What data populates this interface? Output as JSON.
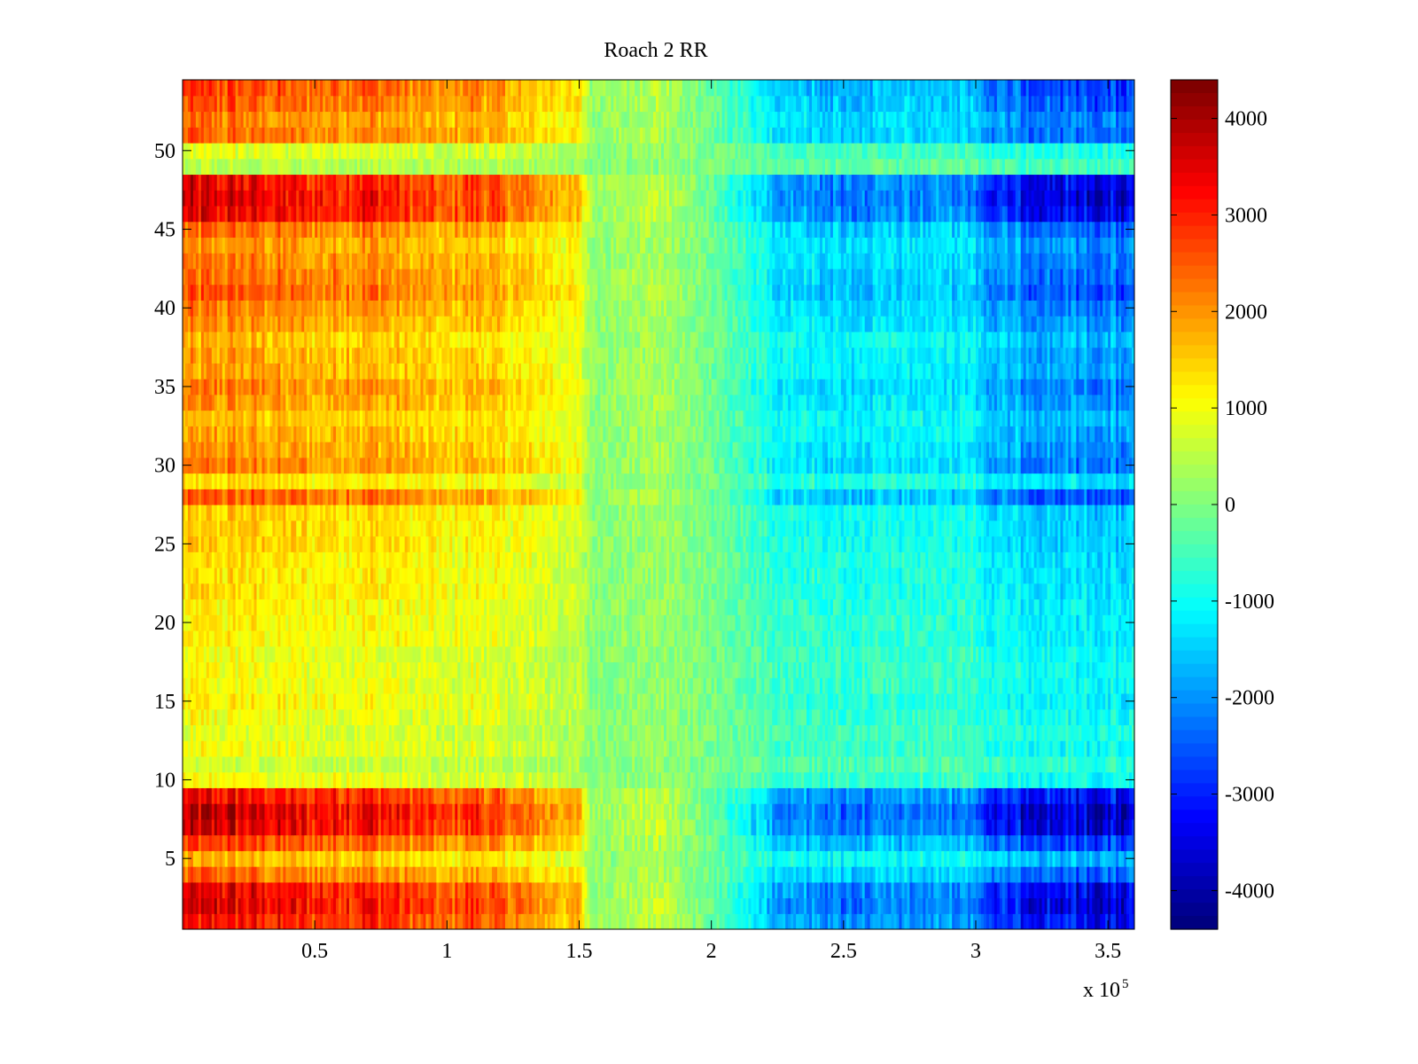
{
  "chart_data": {
    "type": "heatmap",
    "title": "Roach 2 RR",
    "xlabel": "",
    "ylabel": "",
    "x_exponent_label": "x 10",
    "x_exponent_power": "5",
    "xlim": [
      0,
      3.6
    ],
    "ylim": [
      0.5,
      54.5
    ],
    "x_ticks": [
      0.5,
      1,
      1.5,
      2,
      2.5,
      3,
      3.5
    ],
    "x_tick_labels": [
      "0.5",
      "1",
      "1.5",
      "2",
      "2.5",
      "3",
      "3.5"
    ],
    "y_ticks": [
      5,
      10,
      15,
      20,
      25,
      30,
      35,
      40,
      45,
      50
    ],
    "y_tick_labels": [
      "5",
      "10",
      "15",
      "20",
      "25",
      "30",
      "35",
      "40",
      "45",
      "50"
    ],
    "rows": 54,
    "colormap": "jet",
    "clim": [
      -4400,
      4400
    ],
    "colorbar_ticks": [
      4000,
      3000,
      2000,
      1000,
      0,
      -1000,
      -2000,
      -3000,
      -4000
    ],
    "colorbar_tick_labels": [
      "4000",
      "3000",
      "2000",
      "1000",
      "0",
      "-1000",
      "-2000",
      "-3000",
      "-4000"
    ],
    "column_profile": {
      "x": [
        0,
        0.2,
        0.5,
        0.7,
        1.0,
        1.1,
        1.2,
        1.5,
        1.55,
        1.8,
        2.0,
        2.25,
        2.5,
        3.0,
        3.05,
        3.6
      ],
      "value": [
        1700,
        1700,
        1500,
        1600,
        1200,
        1400,
        1200,
        800,
        100,
        300,
        -100,
        -900,
        -1100,
        -1000,
        -1500,
        -1800
      ]
    },
    "row_amplitude": [
      1.9,
      2.1,
      2.0,
      1.4,
      1.0,
      1.6,
      2.1,
      2.2,
      1.9,
      0.6,
      0.4,
      0.6,
      0.5,
      0.6,
      0.7,
      0.6,
      0.6,
      0.6,
      0.7,
      0.7,
      0.7,
      0.8,
      0.8,
      0.8,
      0.9,
      0.9,
      0.9,
      1.5,
      0.8,
      1.3,
      1.2,
      1.1,
      1.0,
      1.2,
      1.3,
      1.1,
      1.1,
      1.0,
      1.2,
      1.3,
      1.5,
      1.4,
      1.3,
      1.2,
      1.4,
      2.0,
      2.1,
      2.0,
      0.3,
      0.5,
      1.4,
      1.3,
      1.5,
      1.6
    ]
  }
}
